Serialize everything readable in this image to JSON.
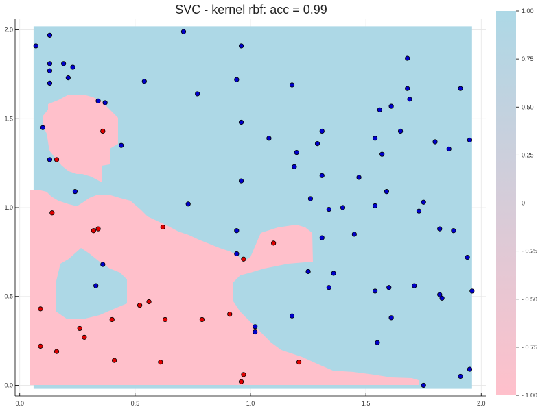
{
  "chart_data": {
    "type": "scatter",
    "title": "SVC - kernel rbf: acc = 0.99",
    "xlabel": "",
    "ylabel": "",
    "xlim": [
      -0.02,
      2.02
    ],
    "ylim": [
      -0.06,
      2.06
    ],
    "x_ticks": [
      "0.0",
      "0.5",
      "1.0",
      "1.5",
      "2.0"
    ],
    "y_ticks": [
      "0.0",
      "0.5",
      "1.0",
      "1.5",
      "2.0"
    ],
    "grid": true,
    "colorbar": {
      "range": [
        -1,
        1
      ],
      "ticks": [
        "1.00",
        "0.75",
        "0.50",
        "0.25",
        "0",
        "- 0.25",
        "- 0.50",
        "- 0.75",
        "- 1.00"
      ],
      "low_color": "#ffc0cb",
      "high_color": "#add8e6"
    },
    "decision_regions": {
      "positive_color": "#add8e6",
      "negative_color": "#ffc0cb",
      "extent_x": [
        0.06,
        1.96
      ],
      "extent_y": [
        -0.02,
        2.02
      ]
    },
    "series": [
      {
        "color": "#0000cc",
        "points": [
          [
            0.07,
            1.91
          ],
          [
            0.13,
            1.97
          ],
          [
            0.71,
            1.99
          ],
          [
            0.96,
            1.91
          ],
          [
            0.13,
            1.81
          ],
          [
            0.19,
            1.81
          ],
          [
            0.23,
            1.79
          ],
          [
            0.13,
            1.77
          ],
          [
            0.21,
            1.73
          ],
          [
            0.13,
            1.7
          ],
          [
            0.54,
            1.71
          ],
          [
            0.94,
            1.72
          ],
          [
            1.18,
            1.69
          ],
          [
            1.68,
            1.84
          ],
          [
            1.68,
            1.67
          ],
          [
            1.91,
            1.67
          ],
          [
            0.77,
            1.64
          ],
          [
            0.34,
            1.6
          ],
          [
            0.37,
            1.59
          ],
          [
            1.69,
            1.61
          ],
          [
            1.61,
            1.57
          ],
          [
            1.56,
            1.55
          ],
          [
            0.1,
            1.45
          ],
          [
            0.96,
            1.48
          ],
          [
            1.31,
            1.43
          ],
          [
            1.65,
            1.43
          ],
          [
            1.08,
            1.39
          ],
          [
            1.54,
            1.39
          ],
          [
            1.8,
            1.37
          ],
          [
            1.95,
            1.38
          ],
          [
            0.44,
            1.35
          ],
          [
            1.29,
            1.36
          ],
          [
            1.86,
            1.33
          ],
          [
            1.2,
            1.31
          ],
          [
            1.57,
            1.3
          ],
          [
            0.13,
            1.27
          ],
          [
            1.19,
            1.23
          ],
          [
            1.31,
            1.18
          ],
          [
            1.47,
            1.17
          ],
          [
            0.96,
            1.15
          ],
          [
            0.24,
            1.09
          ],
          [
            1.59,
            1.09
          ],
          [
            1.26,
            1.05
          ],
          [
            0.73,
            1.02
          ],
          [
            1.75,
            1.03
          ],
          [
            1.34,
            0.99
          ],
          [
            1.4,
            1.0
          ],
          [
            1.54,
            1.01
          ],
          [
            1.73,
            0.98
          ],
          [
            0.94,
            0.87
          ],
          [
            1.82,
            0.88
          ],
          [
            1.88,
            0.87
          ],
          [
            1.45,
            0.85
          ],
          [
            1.31,
            0.83
          ],
          [
            0.94,
            0.74
          ],
          [
            1.94,
            0.72
          ],
          [
            0.36,
            0.68
          ],
          [
            1.25,
            0.64
          ],
          [
            1.36,
            0.63
          ],
          [
            0.33,
            0.56
          ],
          [
            1.34,
            0.55
          ],
          [
            1.54,
            0.53
          ],
          [
            1.6,
            0.55
          ],
          [
            1.71,
            0.56
          ],
          [
            1.96,
            0.53
          ],
          [
            1.82,
            0.51
          ],
          [
            1.83,
            0.49
          ],
          [
            1.18,
            0.39
          ],
          [
            1.61,
            0.38
          ],
          [
            1.02,
            0.33
          ],
          [
            1.02,
            0.3
          ],
          [
            1.55,
            0.24
          ],
          [
            1.91,
            0.05
          ],
          [
            1.95,
            0.09
          ],
          [
            1.75,
            0.0
          ]
        ]
      },
      {
        "color": "#e00000",
        "points": [
          [
            0.36,
            1.43
          ],
          [
            0.16,
            1.27
          ],
          [
            0.14,
            0.97
          ],
          [
            0.32,
            0.87
          ],
          [
            0.34,
            0.88
          ],
          [
            0.62,
            0.89
          ],
          [
            1.1,
            0.8
          ],
          [
            0.97,
            0.71
          ],
          [
            0.09,
            0.43
          ],
          [
            0.52,
            0.45
          ],
          [
            0.56,
            0.47
          ],
          [
            0.91,
            0.4
          ],
          [
            0.4,
            0.37
          ],
          [
            0.63,
            0.37
          ],
          [
            0.79,
            0.37
          ],
          [
            0.26,
            0.32
          ],
          [
            0.28,
            0.27
          ],
          [
            0.09,
            0.22
          ],
          [
            0.16,
            0.19
          ],
          [
            0.41,
            0.14
          ],
          [
            0.61,
            0.13
          ],
          [
            1.21,
            0.13
          ],
          [
            0.97,
            0.06
          ],
          [
            0.96,
            0.02
          ]
        ]
      }
    ]
  }
}
